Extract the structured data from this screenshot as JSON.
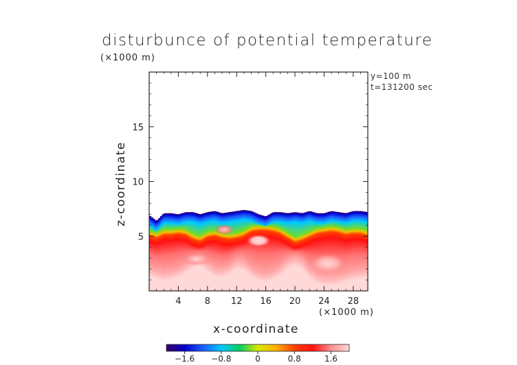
{
  "chart_data": {
    "type": "heatmap",
    "title": "disturbunce of potential temperature",
    "xlabel": "x-coordinate",
    "ylabel": "z-coordinate",
    "x_unit": "(×1000 m)",
    "y_unit": "(×1000 m)",
    "xlim": [
      0,
      30
    ],
    "ylim": [
      0,
      20
    ],
    "x_ticks": [
      4,
      8,
      12,
      16,
      20,
      24,
      28
    ],
    "y_ticks": [
      5,
      10,
      15
    ],
    "annotations": [
      "y=100 m",
      "t=131200 sec"
    ],
    "colorbar": {
      "range": [
        -2.0,
        2.0
      ],
      "ticks": [
        "−1.6",
        "−0.8",
        "0",
        "0.8",
        "1.6"
      ],
      "colors": [
        "#3a0066",
        "#0000cc",
        "#1e5cff",
        "#00c8ff",
        "#00d060",
        "#d8e800",
        "#ffb000",
        "#ff4000",
        "#ff1010",
        "#ff9090",
        "#ffd8d8"
      ]
    },
    "profile": {
      "x": [
        0,
        1,
        2,
        3,
        4,
        5,
        6,
        7,
        8,
        9,
        10,
        11,
        12,
        13,
        14,
        15,
        16,
        17,
        18,
        19,
        20,
        21,
        22,
        23,
        24,
        25,
        26,
        27,
        28,
        29,
        30
      ],
      "top": [
        6.9,
        6.4,
        7.1,
        7.1,
        7.0,
        7.2,
        7.2,
        7.0,
        7.2,
        7.3,
        7.1,
        7.2,
        7.3,
        7.4,
        7.3,
        7.0,
        6.8,
        7.2,
        7.2,
        7.1,
        7.2,
        7.1,
        7.3,
        7.1,
        7.1,
        7.3,
        7.2,
        7.1,
        7.3,
        7.3,
        7.2
      ],
      "warm_top": [
        5.1,
        4.9,
        5.2,
        5.2,
        5.3,
        5.2,
        4.8,
        4.6,
        5.0,
        5.1,
        4.9,
        4.8,
        4.9,
        5.1,
        5.5,
        5.6,
        5.6,
        5.5,
        5.3,
        4.9,
        4.5,
        4.7,
        5.0,
        5.3,
        5.4,
        5.5,
        5.4,
        5.2,
        5.3,
        5.3,
        5.1
      ],
      "bottom": [
        1.7,
        1.5,
        1.3,
        1.4,
        1.6,
        2.0,
        2.5,
        2.7,
        2.2,
        1.7,
        1.6,
        1.9,
        2.4,
        2.3,
        1.7,
        1.3,
        1.2,
        1.4,
        1.8,
        2.4,
        2.7,
        2.4,
        1.6,
        1.1,
        0.9,
        0.9,
        1.0,
        1.2,
        1.4,
        1.5,
        1.6
      ]
    },
    "blobs": [
      {
        "label": "warm cell",
        "x": 15.0,
        "z": 4.6,
        "rx": 1.6,
        "rz": 0.55,
        "value": 2.0
      },
      {
        "label": "warm cell",
        "x": 10.3,
        "z": 5.6,
        "rx": 1.3,
        "rz": 0.45,
        "value": 1.6
      },
      {
        "label": "warm cell",
        "x": 24.5,
        "z": 2.5,
        "rx": 2.5,
        "rz": 0.9,
        "value": 1.8
      },
      {
        "label": "warm cell",
        "x": 6.5,
        "z": 2.9,
        "rx": 2.0,
        "rz": 0.6,
        "value": 1.7
      }
    ]
  }
}
